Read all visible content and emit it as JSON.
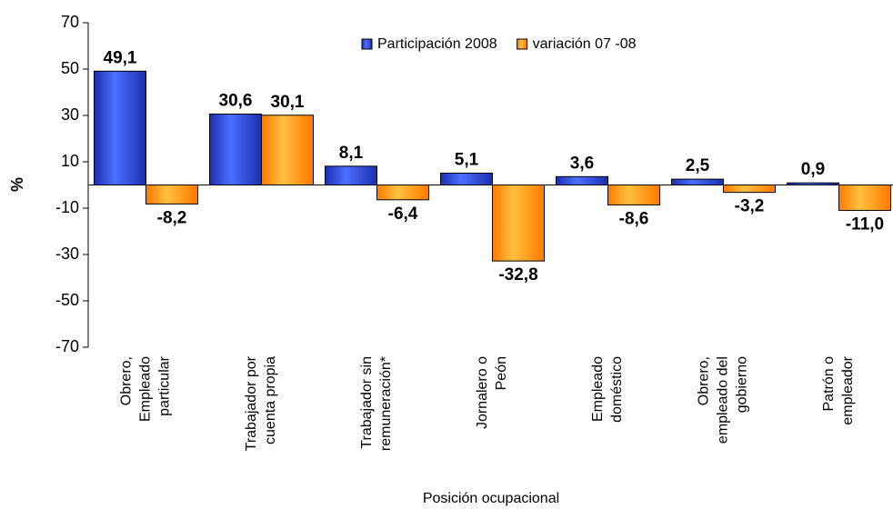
{
  "chart_data": {
    "type": "bar",
    "categories": [
      [
        "Obrero,",
        "Empleado",
        "particular"
      ],
      [
        "Trabajador por",
        "cuenta propia"
      ],
      [
        "Trabajador sin",
        "remuneración*"
      ],
      [
        "Jornalero o",
        "Peón"
      ],
      [
        "Empleado",
        "doméstico"
      ],
      [
        "Obrero,",
        "empleado del",
        "gobierno"
      ],
      [
        "Patrón o",
        "empleador"
      ]
    ],
    "series": [
      {
        "name": "Participación 2008",
        "color": "#3355dd",
        "label_color": "#1a1a80",
        "values": [
          49.1,
          30.6,
          8.1,
          5.1,
          3.6,
          2.5,
          0.9
        ],
        "value_labels": [
          "49,1",
          "30,6",
          "8,1",
          "5,1",
          "3,6",
          "2,5",
          "0,9"
        ]
      },
      {
        "name": "variación 07 -08",
        "color": "#ff8800",
        "label_color": "#ff7a00",
        "values": [
          -8.2,
          30.1,
          -6.4,
          -32.8,
          -8.6,
          -3.2,
          -11.0
        ],
        "value_labels": [
          "-8,2",
          "30,1",
          "-6,4",
          "-32,8",
          "-8,6",
          "-3,2",
          "-11,0"
        ]
      }
    ],
    "y_label": "%",
    "x_label": "Posición ocupacional",
    "ylim": [
      -70,
      70
    ],
    "yticks": [
      -70,
      -50,
      -30,
      -10,
      10,
      30,
      50,
      70
    ],
    "legend": "top"
  }
}
